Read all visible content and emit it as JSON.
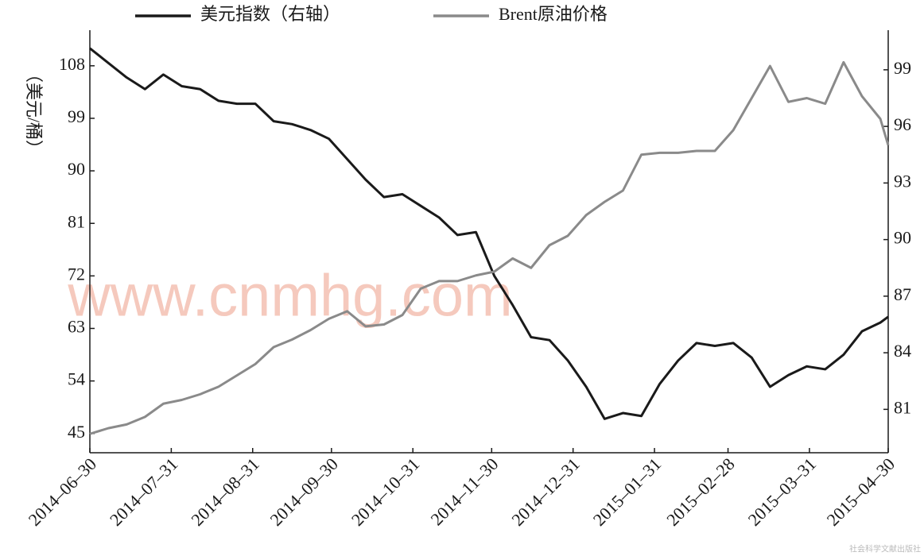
{
  "chart_data": {
    "type": "line",
    "y_label": "（美元/桶）",
    "watermark": "www.cnmhg.com",
    "source": "社会科学文献出版社",
    "x": [
      "2014-06-30",
      "2014-07-07",
      "2014-07-14",
      "2014-07-21",
      "2014-07-28",
      "2014-08-04",
      "2014-08-11",
      "2014-08-18",
      "2014-08-25",
      "2014-09-01",
      "2014-09-08",
      "2014-09-15",
      "2014-09-22",
      "2014-09-29",
      "2014-10-06",
      "2014-10-13",
      "2014-10-20",
      "2014-10-27",
      "2014-11-03",
      "2014-11-10",
      "2014-11-17",
      "2014-11-24",
      "2014-12-01",
      "2014-12-08",
      "2014-12-15",
      "2014-12-22",
      "2014-12-29",
      "2015-01-05",
      "2015-01-12",
      "2015-01-19",
      "2015-01-26",
      "2015-02-02",
      "2015-02-09",
      "2015-02-16",
      "2015-02-23",
      "2015-03-02",
      "2015-03-09",
      "2015-03-16",
      "2015-03-23",
      "2015-03-30",
      "2015-04-06",
      "2015-04-13",
      "2015-04-20",
      "2015-04-27",
      "2015-04-30"
    ],
    "series": [
      {
        "name": "美元指数（右轴）",
        "color": "#1a1a1a",
        "values": [
          111,
          108.5,
          106,
          104,
          106.5,
          104.5,
          104,
          102,
          101.5,
          101.5,
          98.5,
          98,
          97,
          95.5,
          92,
          88.5,
          85.5,
          86,
          84,
          82,
          79,
          79.5,
          72,
          67,
          61.5,
          61,
          57.5,
          53,
          47.5,
          48.5,
          48,
          53.5,
          57.5,
          60.5,
          60,
          60.5,
          58,
          53,
          55,
          56.5,
          56,
          58.5,
          62.5,
          64,
          65
        ]
      },
      {
        "name": "Brent原油价格",
        "color": "#8a8a8a",
        "axis": "y2",
        "values": [
          79.7,
          80,
          80.2,
          80.6,
          81.3,
          81.5,
          81.8,
          82.2,
          82.8,
          83.4,
          84.3,
          84.7,
          85.2,
          85.8,
          86.2,
          85.4,
          85.5,
          86,
          87.4,
          87.8,
          87.8,
          88.1,
          88.3,
          89.0,
          88.5,
          89.7,
          90.2,
          91.3,
          92.0,
          92.6,
          94.5,
          94.6,
          94.6,
          94.7,
          94.7,
          95.8,
          97.5,
          99.2,
          97.3,
          97.5,
          97.2,
          99.4,
          97.6,
          96.4,
          95
        ]
      }
    ],
    "xlim": [
      "2014-06-30",
      "2015-04-30"
    ],
    "xticks": [
      {
        "value": "2014-06-30",
        "label": "2014–06–30"
      },
      {
        "value": "2014-07-31",
        "label": "2014–07–31"
      },
      {
        "value": "2014-08-31",
        "label": "2014–08–31"
      },
      {
        "value": "2014-09-30",
        "label": "2014–09–30"
      },
      {
        "value": "2014-10-31",
        "label": "2014–10–31"
      },
      {
        "value": "2014-11-30",
        "label": "2014–11–30"
      },
      {
        "value": "2014-12-31",
        "label": "2014–12–31"
      },
      {
        "value": "2015-01-31",
        "label": "2015–01–31"
      },
      {
        "value": "2015-02-28",
        "label": "2015–02–28"
      },
      {
        "value": "2015-03-31",
        "label": "2015–03–31"
      },
      {
        "value": "2015-04-30",
        "label": "2015–04–30"
      }
    ],
    "ylim": [
      41.7,
      114.1
    ],
    "yticks": [
      45,
      54,
      63,
      72,
      81,
      90,
      99,
      108
    ],
    "y2lim": [
      78.7,
      101.1
    ],
    "y2ticks": [
      81,
      84,
      87,
      90,
      93,
      96,
      99
    ]
  }
}
